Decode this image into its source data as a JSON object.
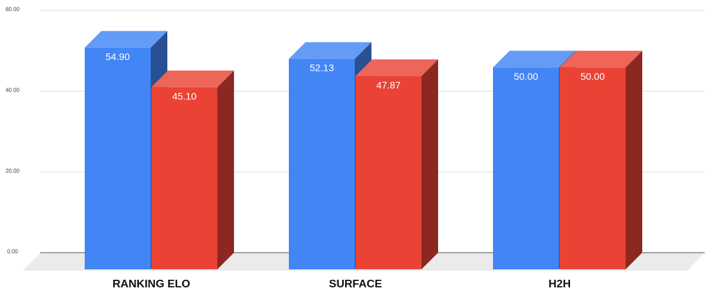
{
  "chart_data": {
    "type": "bar3d",
    "categories": [
      "RANKING ELO",
      "SURFACE",
      "H2H"
    ],
    "series": [
      {
        "color": "#4285f4",
        "values": [
          54.9,
          52.13,
          50
        ],
        "value_labels": [
          "54.90",
          "52.13",
          "50.00"
        ]
      },
      {
        "color": "#ea4335",
        "values": [
          45.1,
          47.87,
          50
        ],
        "value_labels": [
          "45.10",
          "47.87",
          "50.00"
        ]
      }
    ],
    "ylim": [
      0,
      60
    ],
    "yticks": [
      {
        "value": 0,
        "label": "0.00"
      },
      {
        "value": 20,
        "label": "20.00"
      },
      {
        "value": 40,
        "label": "40.00"
      },
      {
        "value": 60,
        "label": "60.00"
      }
    ],
    "grid": true
  }
}
